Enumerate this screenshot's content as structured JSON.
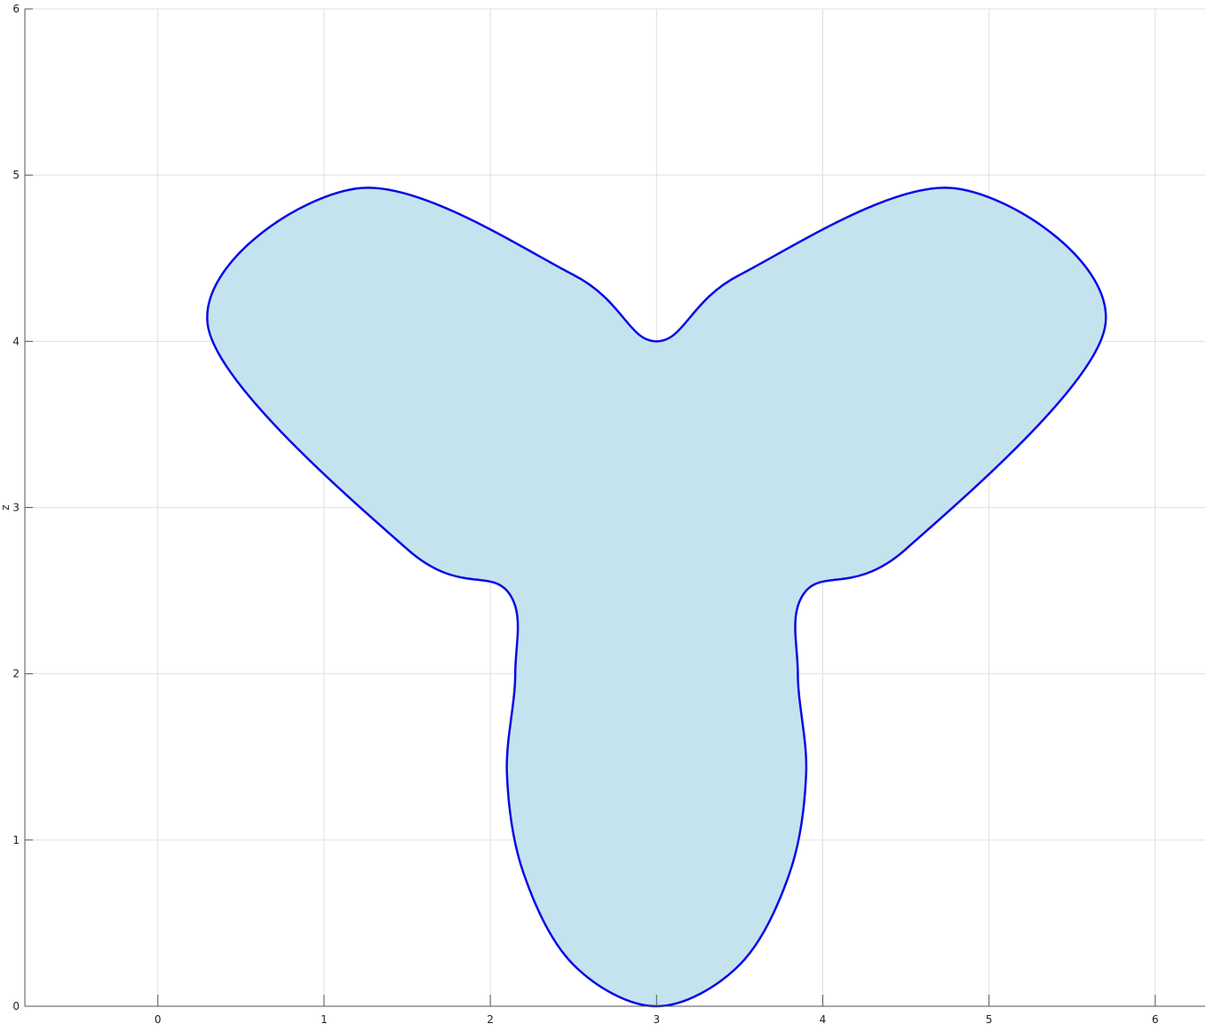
{
  "chart_data": {
    "type": "area",
    "title": "",
    "xlabel": "",
    "ylabel": "z",
    "xlim": [
      -0.8,
      6.3
    ],
    "ylim": [
      0,
      6
    ],
    "x_ticks": [
      "0",
      "1",
      "2",
      "3",
      "4",
      "5",
      "6"
    ],
    "y_ticks": [
      "0",
      "1",
      "2",
      "3",
      "4",
      "5",
      "6"
    ],
    "grid": true,
    "series": [
      {
        "shape": "three-lobed closed curve, filled",
        "x": [
          3.0,
          2.5,
          2.2,
          2.1,
          2.15,
          2.1,
          1.5,
          0.3,
          1.2,
          2.5,
          3.0,
          3.5,
          4.8,
          5.7,
          4.5,
          3.9,
          3.85,
          3.9,
          3.8,
          3.5,
          3.0
        ],
        "y": [
          0.0,
          0.25,
          0.8,
          1.4,
          2.0,
          2.5,
          2.75,
          4.1,
          4.92,
          4.4,
          4.0,
          4.4,
          4.92,
          4.1,
          2.75,
          2.5,
          2.0,
          1.4,
          0.8,
          0.25,
          0.0
        ]
      }
    ],
    "colors": {
      "fill": "#c5e3ee",
      "line": "#0a0ae6",
      "grid": "#e0e0e0",
      "axis": "#555555"
    }
  }
}
